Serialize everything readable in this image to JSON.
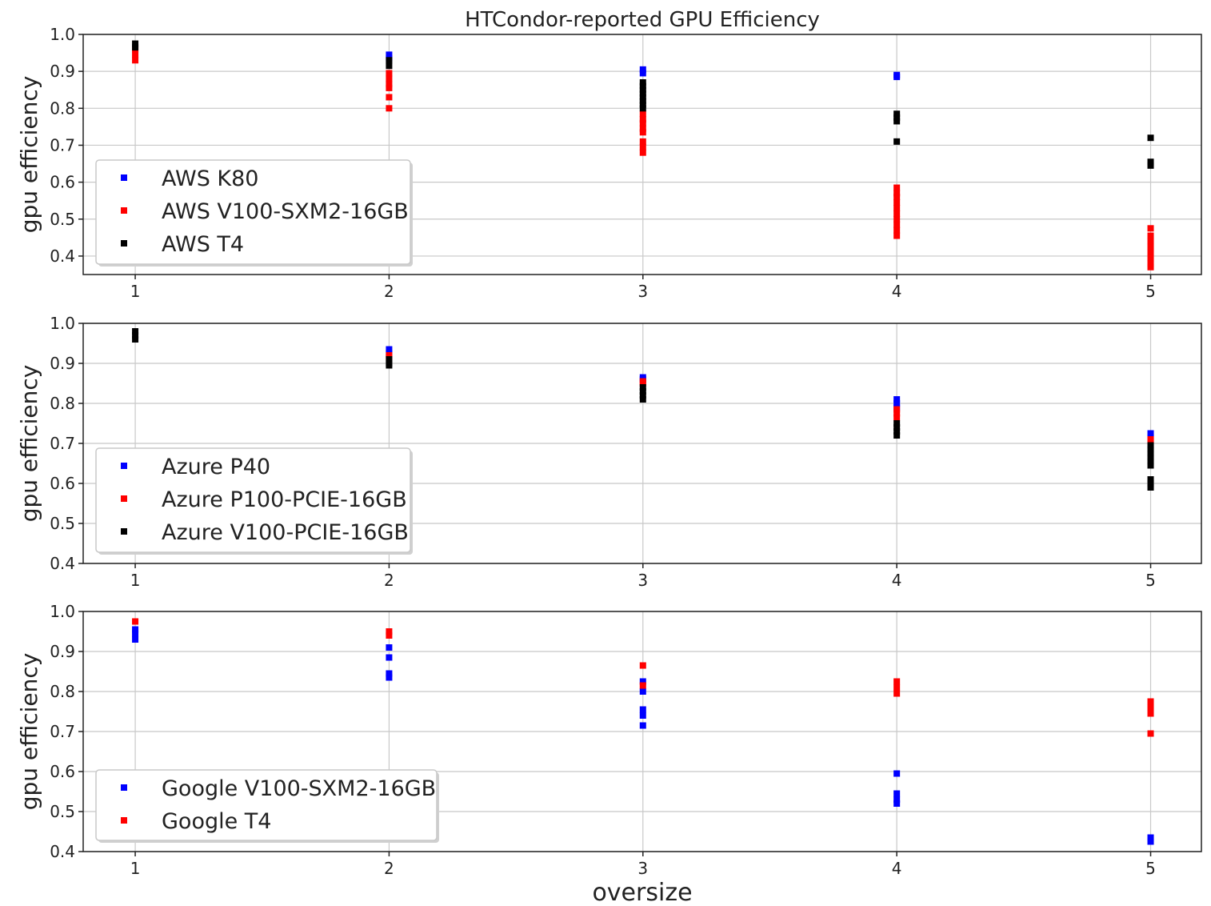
{
  "chart_data": {
    "type": "scatter",
    "title": "HTCondor-reported GPU Efficiency",
    "xlabel": "oversize",
    "xticks": [
      1,
      2,
      3,
      4,
      5
    ],
    "subplots": [
      {
        "ylabel": "gpu efficiency",
        "ylim": [
          0.35,
          1.0
        ],
        "yticks": [
          0.4,
          0.5,
          0.6,
          0.7,
          0.8,
          0.9,
          1.0
        ],
        "ytick_labels": [
          "0.4",
          "0.5",
          "0.6",
          "0.7",
          "0.8",
          "0.9",
          "1.0"
        ],
        "grid": true,
        "legend_position": "lower-left",
        "series": [
          {
            "name": "AWS K80",
            "color": "#0000ff",
            "points": [
              [
                2,
                0.945
              ],
              [
                2,
                0.935
              ],
              [
                3,
                0.905
              ],
              [
                3,
                0.895
              ],
              [
                4,
                0.89
              ],
              [
                4,
                0.885
              ]
            ]
          },
          {
            "name": "AWS V100-SXM2-16GB",
            "color": "#ff0000",
            "points": [
              [
                1,
                0.96
              ],
              [
                1,
                0.945
              ],
              [
                1,
                0.93
              ],
              [
                2,
                0.895
              ],
              [
                2,
                0.88
              ],
              [
                2,
                0.865
              ],
              [
                2,
                0.855
              ],
              [
                2,
                0.83
              ],
              [
                2,
                0.8
              ],
              [
                3,
                0.785
              ],
              [
                3,
                0.77
              ],
              [
                3,
                0.76
              ],
              [
                3,
                0.745
              ],
              [
                3,
                0.735
              ],
              [
                3,
                0.71
              ],
              [
                3,
                0.695
              ],
              [
                3,
                0.68
              ],
              [
                4,
                0.585
              ],
              [
                4,
                0.57
              ],
              [
                4,
                0.56
              ],
              [
                4,
                0.545
              ],
              [
                4,
                0.53
              ],
              [
                4,
                0.515
              ],
              [
                4,
                0.5
              ],
              [
                4,
                0.485
              ],
              [
                4,
                0.47
              ],
              [
                4,
                0.455
              ],
              [
                5,
                0.475
              ],
              [
                5,
                0.455
              ],
              [
                5,
                0.44
              ],
              [
                5,
                0.425
              ],
              [
                5,
                0.41
              ],
              [
                5,
                0.395
              ],
              [
                5,
                0.38
              ],
              [
                5,
                0.37
              ]
            ]
          },
          {
            "name": "AWS T4",
            "color": "#000000",
            "points": [
              [
                1,
                0.975
              ],
              [
                1,
                0.965
              ],
              [
                2,
                0.93
              ],
              [
                2,
                0.915
              ],
              [
                3,
                0.87
              ],
              [
                3,
                0.86
              ],
              [
                3,
                0.85
              ],
              [
                3,
                0.84
              ],
              [
                3,
                0.83
              ],
              [
                3,
                0.82
              ],
              [
                3,
                0.81
              ],
              [
                3,
                0.8
              ],
              [
                4,
                0.785
              ],
              [
                4,
                0.775
              ],
              [
                4,
                0.765
              ],
              [
                4,
                0.71
              ],
              [
                5,
                0.72
              ],
              [
                5,
                0.655
              ],
              [
                5,
                0.645
              ]
            ]
          }
        ]
      },
      {
        "ylabel": "gpu efficiency",
        "ylim": [
          0.4,
          1.0
        ],
        "yticks": [
          0.4,
          0.5,
          0.6,
          0.7,
          0.8,
          0.9,
          1.0
        ],
        "ytick_labels": [
          "0.4",
          "0.5",
          "0.6",
          "0.7",
          "0.8",
          "0.9",
          "1.0"
        ],
        "grid": true,
        "legend_position": "lower-left",
        "series": [
          {
            "name": "Azure P40",
            "color": "#0000ff",
            "points": [
              [
                2,
                0.935
              ],
              [
                2,
                0.925
              ],
              [
                3,
                0.865
              ],
              [
                3,
                0.86
              ],
              [
                4,
                0.81
              ],
              [
                4,
                0.8
              ],
              [
                4,
                0.79
              ],
              [
                5,
                0.725
              ],
              [
                5,
                0.715
              ]
            ]
          },
          {
            "name": "Azure P100-PCIE-16GB",
            "color": "#ff0000",
            "points": [
              [
                2,
                0.92
              ],
              [
                2,
                0.915
              ],
              [
                3,
                0.855
              ],
              [
                3,
                0.85
              ],
              [
                4,
                0.785
              ],
              [
                4,
                0.775
              ],
              [
                4,
                0.765
              ],
              [
                5,
                0.71
              ],
              [
                5,
                0.705
              ]
            ]
          },
          {
            "name": "Azure V100-PCIE-16GB",
            "color": "#000000",
            "points": [
              [
                1,
                0.98
              ],
              [
                1,
                0.97
              ],
              [
                1,
                0.96
              ],
              [
                2,
                0.91
              ],
              [
                2,
                0.9
              ],
              [
                2,
                0.895
              ],
              [
                3,
                0.84
              ],
              [
                3,
                0.83
              ],
              [
                3,
                0.82
              ],
              [
                3,
                0.81
              ],
              [
                4,
                0.75
              ],
              [
                4,
                0.74
              ],
              [
                4,
                0.73
              ],
              [
                4,
                0.72
              ],
              [
                5,
                0.695
              ],
              [
                5,
                0.685
              ],
              [
                5,
                0.675
              ],
              [
                5,
                0.665
              ],
              [
                5,
                0.655
              ],
              [
                5,
                0.645
              ],
              [
                5,
                0.61
              ],
              [
                5,
                0.6
              ],
              [
                5,
                0.59
              ]
            ]
          }
        ]
      },
      {
        "ylabel": "gpu efficiency",
        "ylim": [
          0.4,
          1.0
        ],
        "yticks": [
          0.4,
          0.5,
          0.6,
          0.7,
          0.8,
          0.9,
          1.0
        ],
        "ytick_labels": [
          "0.4",
          "0.5",
          "0.6",
          "0.7",
          "0.8",
          "0.9",
          "1.0"
        ],
        "grid": true,
        "legend_position": "lower-left",
        "series": [
          {
            "name": "Google V100-SXM2-16GB",
            "color": "#0000ff",
            "points": [
              [
                1,
                0.955
              ],
              [
                1,
                0.945
              ],
              [
                1,
                0.93
              ],
              [
                2,
                0.91
              ],
              [
                2,
                0.885
              ],
              [
                2,
                0.845
              ],
              [
                2,
                0.835
              ],
              [
                3,
                0.825
              ],
              [
                3,
                0.8
              ],
              [
                3,
                0.755
              ],
              [
                3,
                0.74
              ],
              [
                3,
                0.715
              ],
              [
                4,
                0.595
              ],
              [
                4,
                0.545
              ],
              [
                4,
                0.53
              ],
              [
                4,
                0.52
              ],
              [
                5,
                0.435
              ],
              [
                5,
                0.425
              ]
            ]
          },
          {
            "name": "Google T4",
            "color": "#ff0000",
            "points": [
              [
                1,
                0.975
              ],
              [
                2,
                0.95
              ],
              [
                2,
                0.94
              ],
              [
                3,
                0.865
              ],
              [
                3,
                0.815
              ],
              [
                4,
                0.825
              ],
              [
                4,
                0.81
              ],
              [
                4,
                0.795
              ],
              [
                5,
                0.775
              ],
              [
                5,
                0.76
              ],
              [
                5,
                0.745
              ],
              [
                5,
                0.695
              ]
            ]
          }
        ]
      }
    ]
  }
}
